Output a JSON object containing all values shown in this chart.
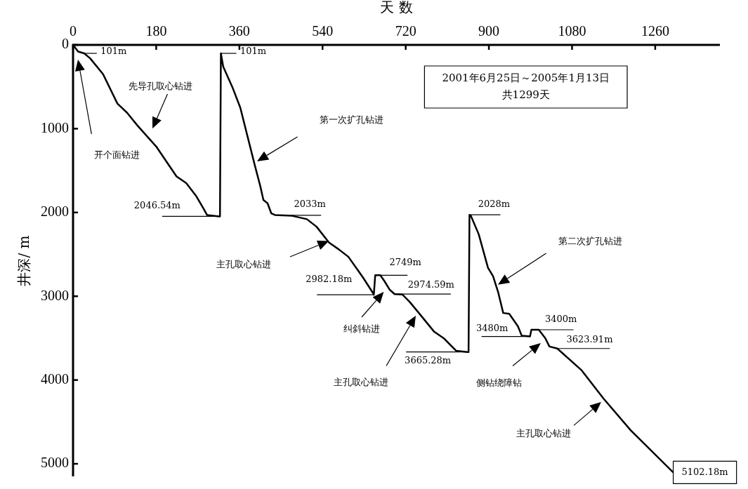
{
  "chart_data": {
    "type": "line",
    "xlabel": "天 数",
    "ylabel": "井深/ m",
    "xlim": [
      0,
      1400
    ],
    "xticks": [
      0,
      180,
      360,
      540,
      720,
      900,
      1080,
      1260
    ],
    "ylim": [
      5150,
      0
    ],
    "yticks": [
      0,
      1000,
      2000,
      3000,
      4000,
      5000
    ],
    "grid": false,
    "legend": false,
    "marker": "none",
    "line_style": "solid",
    "series": [
      {
        "color": "#000000",
        "x": [
          0,
          11,
          24,
          37,
          65,
          96,
          117,
          139,
          181,
          224,
          245,
          266,
          282,
          290,
          316,
          318,
          320,
          325,
          346,
          362,
          378,
          394,
          405,
          412,
          421,
          429,
          437,
          474,
          506,
          527,
          554,
          575,
          596,
          628,
          649,
          651,
          654,
          665,
          674,
          685,
          696,
          713,
          729,
          750,
          781,
          802,
          829,
          853,
          856,
          858,
          861,
          878,
          898,
          909,
          920,
          931,
          944,
          963,
          971,
          989,
          992,
          1008,
          1022,
          1031,
          1048,
          1100,
          1148,
          1207,
          1299
        ],
        "values": [
          0,
          80,
          101,
          160,
          350,
          700,
          810,
          960,
          1220,
          1570,
          1650,
          1800,
          1950,
          2030,
          2046.54,
          2046.54,
          101,
          260,
          520,
          750,
          1100,
          1450,
          1680,
          1850,
          1890,
          2010,
          2030,
          2040,
          2080,
          2170,
          2360,
          2440,
          2530,
          2780,
          2960,
          2982.18,
          2749,
          2749,
          2820,
          2920,
          2974.59,
          2980,
          3070,
          3210,
          3420,
          3500,
          3650,
          3665.28,
          3665.28,
          2028,
          2040,
          2260,
          2660,
          2760,
          2950,
          3200,
          3210,
          3360,
          3470,
          3480,
          3400,
          3400,
          3500,
          3600,
          3623.91,
          3880,
          4220,
          4600,
          5102.18
        ]
      }
    ],
    "annotations": [
      {
        "text": "101m",
        "x": 24,
        "y": 101
      },
      {
        "text": "101m",
        "x": 320,
        "y": 101
      },
      {
        "text": "2046.54m",
        "x": 316,
        "y": 2046.54
      },
      {
        "text": "2033m",
        "x": 470,
        "y": 2033
      },
      {
        "text": "2982.18m",
        "x": 651,
        "y": 2982.18
      },
      {
        "text": "2749m",
        "x": 654,
        "y": 2749
      },
      {
        "text": "2974.59m",
        "x": 696,
        "y": 2974.59
      },
      {
        "text": "3665.28m",
        "x": 853,
        "y": 3665.28
      },
      {
        "text": "2028m",
        "x": 858,
        "y": 2028
      },
      {
        "text": "3480m",
        "x": 989,
        "y": 3480
      },
      {
        "text": "3400m",
        "x": 992,
        "y": 3400
      },
      {
        "text": "3623.91m",
        "x": 1048,
        "y": 3623.91
      },
      {
        "text": "5102.18m",
        "x": 1299,
        "y": 5102.18
      },
      "开个面钻进",
      "先导孔取心钻进",
      "第一次扩孔钻进",
      "主孔取心钻进",
      "纠斜钻进",
      "主孔取心钻进",
      "第二次扩孔钻进",
      "侧钻绕障钻",
      "主孔取心钻进",
      "2001年6月25日～2005年1月13日",
      "共1299天"
    ]
  }
}
